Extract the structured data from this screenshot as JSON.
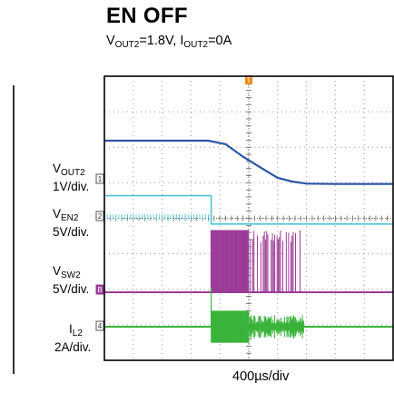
{
  "title": "EN OFF",
  "subtitle": {
    "vout": "V",
    "vout_sub": "OUT2",
    "vout_val": "=1.8V, ",
    "iout": "I",
    "iout_sub": "OUT2",
    "iout_val": "=0A"
  },
  "xlabel": "400µs/div",
  "colors": {
    "vout2": "#2a55a6",
    "ven2": "#4fc4d6",
    "vsw2": "#9c3a98",
    "il2": "#3bb33b",
    "trigger": "#f08a1c",
    "grid": "#9a9a9a",
    "frame": "#000000"
  },
  "chart_data": {
    "type": "line",
    "title": "EN OFF",
    "subtitle": "VOUT2=1.8V, IOUT2=0A",
    "xlabel": "400µs/div",
    "x_divisions": 10,
    "y_divisions": 8,
    "grid": true,
    "x_unit": "div",
    "trigger_marker": "T",
    "series": [
      {
        "key": "vout2",
        "name": "VOUT2",
        "name_main": "V",
        "name_sub": "OUT2",
        "scale": "1V/div.",
        "marker": "1",
        "x": [
          0,
          3.6,
          4.2,
          4.8,
          5.5,
          6.0,
          6.5,
          7.0,
          8.0,
          10.0
        ],
        "y": [
          1.1,
          1.1,
          1.0,
          0.65,
          0.3,
          0.05,
          -0.05,
          -0.11,
          -0.12,
          -0.12
        ]
      },
      {
        "key": "ven2",
        "name": "VEN2",
        "name_main": "V",
        "name_sub": "EN2",
        "scale": "5V/div.",
        "marker": "2",
        "x": [
          0,
          3.7,
          3.7,
          10.0
        ],
        "y": [
          0.6,
          0.6,
          -0.2,
          -0.2
        ]
      },
      {
        "key": "vsw2",
        "name": "VSW2",
        "name_main": "V",
        "name_sub": "SW2",
        "scale": "5V/div.",
        "marker": "B",
        "switching_start": 3.7,
        "switching_burst_end": 5.0,
        "switching_end": 6.9,
        "low_level": -0.05,
        "high_level": 1.7
      },
      {
        "key": "il2",
        "name": "IL2",
        "name_main": "I",
        "name_sub": "L2",
        "scale": "2A/div.",
        "marker": "4",
        "ripple_start": 3.7,
        "ripple_end": 6.9,
        "baseline": 0.0
      }
    ]
  }
}
